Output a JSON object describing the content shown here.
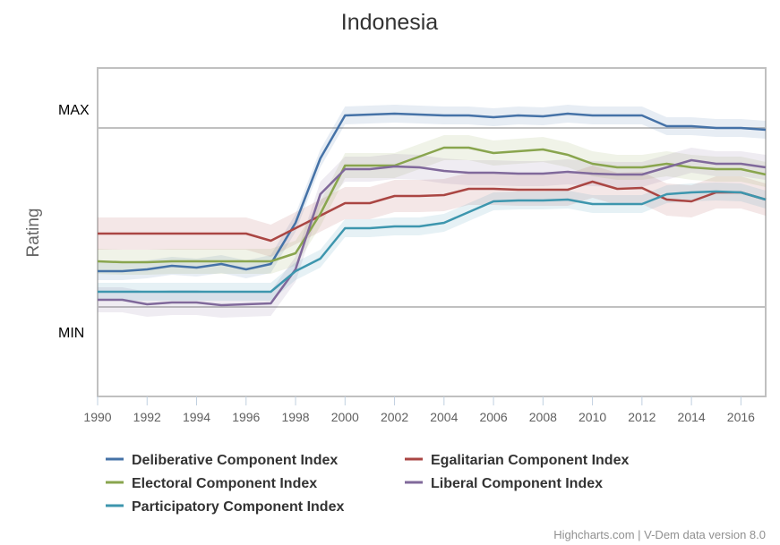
{
  "chart_data": {
    "type": "line",
    "title": "Indonesia",
    "ylabel": "Rating",
    "xlabel": "",
    "y_level_labels": [
      {
        "label": "MAX",
        "value": 1
      },
      {
        "label": "MIN",
        "value": 0
      }
    ],
    "ylim": [
      -0.5,
      1.35
    ],
    "xlim": [
      1990,
      2017
    ],
    "x_ticks": [
      1990,
      1992,
      1994,
      1996,
      1998,
      2000,
      2002,
      2004,
      2006,
      2008,
      2010,
      2012,
      2014,
      2016
    ],
    "x": [
      1990,
      1991,
      1992,
      1993,
      1994,
      1995,
      1996,
      1997,
      1998,
      1999,
      2000,
      2001,
      2002,
      2003,
      2004,
      2005,
      2006,
      2007,
      2008,
      2009,
      2010,
      2011,
      2012,
      2013,
      2014,
      2015,
      2016,
      2017
    ],
    "grid": "horizontal lines at MIN and MAX",
    "legend_position": "bottom",
    "series": [
      {
        "name": "Deliberative Component Index",
        "color": "#4572a7",
        "band_width": 0.05,
        "values": [
          0.2,
          0.2,
          0.21,
          0.23,
          0.22,
          0.24,
          0.21,
          0.24,
          0.47,
          0.83,
          1.07,
          1.075,
          1.08,
          1.075,
          1.07,
          1.07,
          1.06,
          1.07,
          1.065,
          1.08,
          1.07,
          1.07,
          1.07,
          1.01,
          1.01,
          1.0,
          1.0,
          0.99
        ]
      },
      {
        "name": "Egalitarian Component Index",
        "color": "#aa4643",
        "band_width": 0.09,
        "values": [
          0.41,
          0.41,
          0.41,
          0.41,
          0.41,
          0.41,
          0.41,
          0.37,
          0.44,
          0.51,
          0.58,
          0.58,
          0.62,
          0.62,
          0.625,
          0.66,
          0.66,
          0.655,
          0.655,
          0.655,
          0.7,
          0.66,
          0.665,
          0.6,
          0.59,
          0.64,
          0.64,
          0.6
        ]
      },
      {
        "name": "Electoral Component Index",
        "color": "#89a54e",
        "band_width": 0.07,
        "values": [
          0.255,
          0.25,
          0.25,
          0.255,
          0.255,
          0.255,
          0.255,
          0.255,
          0.3,
          0.52,
          0.79,
          0.79,
          0.79,
          0.84,
          0.89,
          0.89,
          0.86,
          0.87,
          0.88,
          0.85,
          0.8,
          0.78,
          0.78,
          0.8,
          0.78,
          0.77,
          0.77,
          0.74
        ]
      },
      {
        "name": "Liberal Component Index",
        "color": "#80699b",
        "band_width": 0.07,
        "values": [
          0.04,
          0.04,
          0.015,
          0.025,
          0.025,
          0.01,
          0.015,
          0.02,
          0.21,
          0.63,
          0.77,
          0.77,
          0.785,
          0.78,
          0.76,
          0.75,
          0.75,
          0.745,
          0.745,
          0.755,
          0.745,
          0.74,
          0.74,
          0.78,
          0.82,
          0.8,
          0.8,
          0.78
        ]
      },
      {
        "name": "Participatory Component Index",
        "color": "#3d96ae",
        "band_width": 0.05,
        "values": [
          0.085,
          0.085,
          0.085,
          0.085,
          0.085,
          0.085,
          0.085,
          0.085,
          0.2,
          0.27,
          0.44,
          0.44,
          0.45,
          0.45,
          0.47,
          0.53,
          0.59,
          0.595,
          0.595,
          0.6,
          0.575,
          0.575,
          0.575,
          0.63,
          0.64,
          0.645,
          0.64,
          0.6
        ]
      }
    ]
  },
  "credits": "Highcharts.com | V-Dem data version 8.0"
}
